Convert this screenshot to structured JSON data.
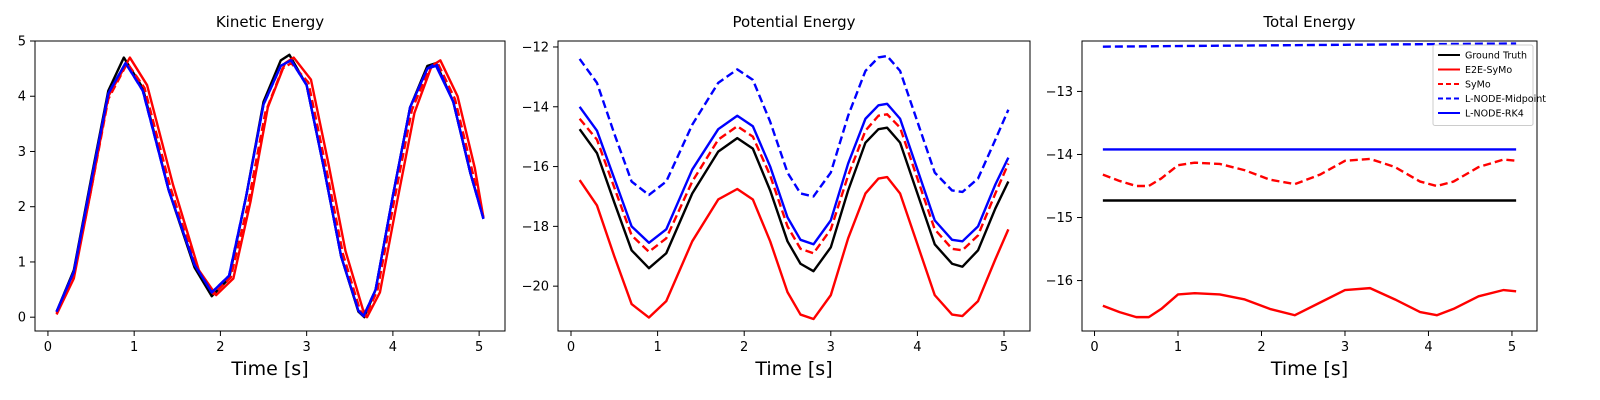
{
  "chart_data": [
    {
      "type": "line",
      "title": "Kinetic Energy",
      "xlabel": "Time [s]",
      "ylabel": "",
      "xlim": [
        -0.15,
        5.3
      ],
      "ylim": [
        -0.25,
        5.0
      ],
      "xticks": [
        "0",
        "1",
        "2",
        "3",
        "4",
        "5"
      ],
      "yticks": [
        "0",
        "1",
        "2",
        "3",
        "4",
        "5"
      ],
      "grid": false,
      "series": [
        {
          "name": "Ground Truth",
          "color": "#000000",
          "dash": "solid",
          "x": [
            0.1,
            0.3,
            0.5,
            0.7,
            0.88,
            1.1,
            1.4,
            1.7,
            1.9,
            2.1,
            2.3,
            2.5,
            2.7,
            2.8,
            3.0,
            3.2,
            3.4,
            3.6,
            3.67,
            3.8,
            4.0,
            4.2,
            4.4,
            4.5,
            4.7,
            4.9,
            5.05
          ],
          "y": [
            0.1,
            0.85,
            2.5,
            4.1,
            4.7,
            4.15,
            2.3,
            0.9,
            0.38,
            0.7,
            2.2,
            3.9,
            4.65,
            4.75,
            4.2,
            2.7,
            1.1,
            0.1,
            0.0,
            0.5,
            2.2,
            3.8,
            4.55,
            4.6,
            3.9,
            2.6,
            1.8
          ]
        },
        {
          "name": "E2E-SyMo",
          "color": "#ff0000",
          "dash": "solid",
          "x": [
            0.1,
            0.3,
            0.5,
            0.7,
            0.95,
            1.15,
            1.45,
            1.75,
            1.95,
            2.15,
            2.35,
            2.55,
            2.75,
            2.85,
            3.05,
            3.25,
            3.45,
            3.65,
            3.7,
            3.85,
            4.05,
            4.25,
            4.45,
            4.55,
            4.75,
            4.95,
            5.05
          ],
          "y": [
            0.05,
            0.7,
            2.3,
            4.0,
            4.7,
            4.2,
            2.4,
            0.85,
            0.4,
            0.7,
            2.1,
            3.8,
            4.6,
            4.7,
            4.3,
            2.8,
            1.2,
            0.15,
            0.0,
            0.45,
            2.1,
            3.7,
            4.55,
            4.65,
            4.0,
            2.7,
            1.8
          ]
        },
        {
          "name": "SyMo",
          "color": "#ff0000",
          "dash": "dashed",
          "x": [
            0.1,
            0.3,
            0.5,
            0.7,
            0.92,
            1.12,
            1.42,
            1.72,
            1.92,
            2.12,
            2.32,
            2.52,
            2.72,
            2.82,
            3.02,
            3.22,
            3.42,
            3.62,
            3.68,
            3.82,
            4.02,
            4.22,
            4.42,
            4.52,
            4.72,
            4.92,
            5.05
          ],
          "y": [
            0.08,
            0.75,
            2.3,
            3.95,
            4.6,
            4.15,
            2.35,
            0.9,
            0.42,
            0.72,
            2.05,
            3.7,
            4.5,
            4.6,
            4.25,
            2.75,
            1.15,
            0.12,
            0.02,
            0.48,
            2.15,
            3.75,
            4.5,
            4.6,
            3.95,
            2.65,
            1.8
          ]
        },
        {
          "name": "L-NODE-Midpoint",
          "color": "#0000ff",
          "dash": "dashed",
          "x": [
            0.1,
            0.3,
            0.5,
            0.7,
            0.9,
            1.1,
            1.4,
            1.7,
            1.9,
            2.1,
            2.3,
            2.5,
            2.7,
            2.82,
            3.0,
            3.2,
            3.4,
            3.6,
            3.66,
            3.8,
            4.0,
            4.2,
            4.4,
            4.5,
            4.7,
            4.9,
            5.05
          ],
          "y": [
            0.1,
            0.82,
            2.45,
            4.05,
            4.6,
            4.1,
            2.3,
            0.95,
            0.45,
            0.75,
            2.2,
            3.85,
            4.55,
            4.65,
            4.2,
            2.7,
            1.1,
            0.12,
            0.02,
            0.5,
            2.2,
            3.8,
            4.5,
            4.6,
            3.9,
            2.6,
            1.78
          ]
        },
        {
          "name": "L-NODE-RK4",
          "color": "#0000ff",
          "dash": "solid",
          "x": [
            0.1,
            0.3,
            0.5,
            0.7,
            0.9,
            1.1,
            1.4,
            1.7,
            1.9,
            2.1,
            2.3,
            2.5,
            2.7,
            2.82,
            3.0,
            3.2,
            3.4,
            3.6,
            3.66,
            3.8,
            4.0,
            4.2,
            4.4,
            4.5,
            4.7,
            4.9,
            5.05
          ],
          "y": [
            0.1,
            0.82,
            2.45,
            4.05,
            4.6,
            4.1,
            2.3,
            0.95,
            0.45,
            0.75,
            2.2,
            3.85,
            4.55,
            4.65,
            4.2,
            2.7,
            1.1,
            0.12,
            0.02,
            0.5,
            2.2,
            3.8,
            4.5,
            4.55,
            3.9,
            2.6,
            1.78
          ]
        }
      ]
    },
    {
      "type": "line",
      "title": "Potential Energy",
      "xlabel": "Time [s]",
      "ylabel": "",
      "xlim": [
        -0.15,
        5.3
      ],
      "ylim": [
        -21.5,
        -11.8
      ],
      "xticks": [
        "0",
        "1",
        "2",
        "3",
        "4",
        "5"
      ],
      "yticks": [
        "−20",
        "−18",
        "−16",
        "−14",
        "−12"
      ],
      "ytick_values": [
        -20,
        -18,
        -16,
        -14,
        -12
      ],
      "grid": false,
      "series": [
        {
          "name": "Ground Truth",
          "color": "#000000",
          "dash": "solid",
          "x": [
            0.1,
            0.3,
            0.5,
            0.7,
            0.9,
            1.1,
            1.4,
            1.7,
            1.92,
            2.1,
            2.3,
            2.5,
            2.65,
            2.8,
            3.0,
            3.2,
            3.4,
            3.55,
            3.65,
            3.8,
            4.0,
            4.2,
            4.4,
            4.52,
            4.7,
            4.9,
            5.05
          ],
          "y": [
            -14.75,
            -15.55,
            -17.2,
            -18.8,
            -19.4,
            -18.9,
            -16.9,
            -15.5,
            -15.05,
            -15.4,
            -16.8,
            -18.5,
            -19.25,
            -19.5,
            -18.7,
            -16.8,
            -15.2,
            -14.75,
            -14.7,
            -15.2,
            -16.9,
            -18.6,
            -19.25,
            -19.35,
            -18.8,
            -17.4,
            -16.5
          ]
        },
        {
          "name": "E2E-SyMo",
          "color": "#ff0000",
          "dash": "solid",
          "x": [
            0.1,
            0.3,
            0.5,
            0.7,
            0.9,
            1.1,
            1.4,
            1.7,
            1.92,
            2.1,
            2.3,
            2.5,
            2.65,
            2.8,
            3.0,
            3.2,
            3.4,
            3.55,
            3.65,
            3.8,
            4.0,
            4.2,
            4.4,
            4.52,
            4.7,
            4.9,
            5.05
          ],
          "y": [
            -16.45,
            -17.3,
            -19.0,
            -20.6,
            -21.05,
            -20.5,
            -18.5,
            -17.1,
            -16.75,
            -17.1,
            -18.5,
            -20.2,
            -20.95,
            -21.1,
            -20.3,
            -18.4,
            -16.9,
            -16.4,
            -16.35,
            -16.9,
            -18.6,
            -20.3,
            -20.95,
            -21.0,
            -20.5,
            -19.1,
            -18.1
          ]
        },
        {
          "name": "SyMo",
          "color": "#ff0000",
          "dash": "dashed",
          "x": [
            0.1,
            0.3,
            0.5,
            0.7,
            0.9,
            1.1,
            1.4,
            1.7,
            1.92,
            2.1,
            2.3,
            2.5,
            2.65,
            2.8,
            3.0,
            3.2,
            3.4,
            3.55,
            3.65,
            3.8,
            4.0,
            4.2,
            4.4,
            4.52,
            4.7,
            4.9,
            5.05
          ],
          "y": [
            -14.4,
            -15.1,
            -16.7,
            -18.3,
            -18.85,
            -18.4,
            -16.5,
            -15.1,
            -14.65,
            -15.0,
            -16.3,
            -18.0,
            -18.75,
            -18.9,
            -18.1,
            -16.3,
            -14.8,
            -14.3,
            -14.25,
            -14.7,
            -16.4,
            -18.1,
            -18.75,
            -18.8,
            -18.3,
            -16.9,
            -15.9
          ]
        },
        {
          "name": "L-NODE-Midpoint",
          "color": "#0000ff",
          "dash": "dashed",
          "x": [
            0.1,
            0.3,
            0.5,
            0.7,
            0.9,
            1.1,
            1.4,
            1.7,
            1.92,
            2.1,
            2.3,
            2.5,
            2.65,
            2.8,
            3.0,
            3.2,
            3.4,
            3.55,
            3.65,
            3.8,
            4.0,
            4.2,
            4.4,
            4.52,
            4.7,
            4.9,
            5.05
          ],
          "y": [
            -12.4,
            -13.2,
            -14.9,
            -16.5,
            -16.95,
            -16.5,
            -14.6,
            -13.2,
            -12.75,
            -13.1,
            -14.5,
            -16.2,
            -16.9,
            -17.0,
            -16.2,
            -14.3,
            -12.8,
            -12.35,
            -12.3,
            -12.8,
            -14.5,
            -16.2,
            -16.8,
            -16.85,
            -16.4,
            -15.1,
            -14.1
          ]
        },
        {
          "name": "L-NODE-RK4",
          "color": "#0000ff",
          "dash": "solid",
          "x": [
            0.1,
            0.3,
            0.5,
            0.7,
            0.9,
            1.1,
            1.4,
            1.7,
            1.92,
            2.1,
            2.3,
            2.5,
            2.65,
            2.8,
            3.0,
            3.2,
            3.4,
            3.55,
            3.65,
            3.8,
            4.0,
            4.2,
            4.4,
            4.52,
            4.7,
            4.9,
            5.05
          ],
          "y": [
            -14.0,
            -14.8,
            -16.4,
            -18.0,
            -18.55,
            -18.1,
            -16.1,
            -14.75,
            -14.3,
            -14.65,
            -16.0,
            -17.7,
            -18.45,
            -18.6,
            -17.8,
            -15.9,
            -14.4,
            -13.95,
            -13.9,
            -14.4,
            -16.1,
            -17.8,
            -18.45,
            -18.5,
            -18.0,
            -16.6,
            -15.7
          ]
        }
      ]
    },
    {
      "type": "line",
      "title": "Total Energy",
      "xlabel": "Time [s]",
      "ylabel": "",
      "xlim": [
        -0.15,
        5.3
      ],
      "ylim": [
        -16.8,
        -12.2
      ],
      "xticks": [
        "0",
        "1",
        "2",
        "3",
        "4",
        "5"
      ],
      "yticks": [
        "−16",
        "−15",
        "−14",
        "−13"
      ],
      "ytick_values": [
        -16,
        -15,
        -14,
        -13
      ],
      "grid": false,
      "legend": "top-right",
      "series": [
        {
          "name": "Ground Truth",
          "color": "#000000",
          "dash": "solid",
          "x": [
            0.1,
            5.05
          ],
          "y": [
            -14.73,
            -14.73
          ]
        },
        {
          "name": "E2E-SyMo",
          "color": "#ff0000",
          "dash": "solid",
          "x": [
            0.1,
            0.3,
            0.5,
            0.65,
            0.8,
            1.0,
            1.2,
            1.5,
            1.8,
            2.1,
            2.4,
            2.7,
            3.0,
            3.3,
            3.6,
            3.9,
            4.1,
            4.3,
            4.6,
            4.9,
            5.05
          ],
          "y": [
            -16.4,
            -16.5,
            -16.58,
            -16.58,
            -16.45,
            -16.22,
            -16.2,
            -16.22,
            -16.3,
            -16.45,
            -16.55,
            -16.35,
            -16.15,
            -16.12,
            -16.3,
            -16.5,
            -16.55,
            -16.45,
            -16.25,
            -16.15,
            -16.17
          ]
        },
        {
          "name": "SyMo",
          "color": "#ff0000",
          "dash": "dashed",
          "x": [
            0.1,
            0.3,
            0.5,
            0.65,
            0.8,
            1.0,
            1.2,
            1.5,
            1.8,
            2.1,
            2.4,
            2.7,
            3.0,
            3.3,
            3.6,
            3.9,
            4.1,
            4.3,
            4.6,
            4.9,
            5.05
          ],
          "y": [
            -14.32,
            -14.42,
            -14.5,
            -14.5,
            -14.38,
            -14.17,
            -14.13,
            -14.15,
            -14.25,
            -14.4,
            -14.47,
            -14.32,
            -14.1,
            -14.07,
            -14.2,
            -14.43,
            -14.5,
            -14.43,
            -14.2,
            -14.08,
            -14.1
          ]
        },
        {
          "name": "L-NODE-Midpoint",
          "color": "#0000ff",
          "dash": "dashed",
          "x": [
            0.1,
            1.0,
            2.0,
            3.0,
            4.0,
            5.05
          ],
          "y": [
            -12.29,
            -12.28,
            -12.27,
            -12.26,
            -12.25,
            -12.24
          ]
        },
        {
          "name": "L-NODE-RK4",
          "color": "#0000ff",
          "dash": "solid",
          "x": [
            0.1,
            5.05
          ],
          "y": [
            -13.92,
            -13.92
          ]
        }
      ]
    }
  ]
}
